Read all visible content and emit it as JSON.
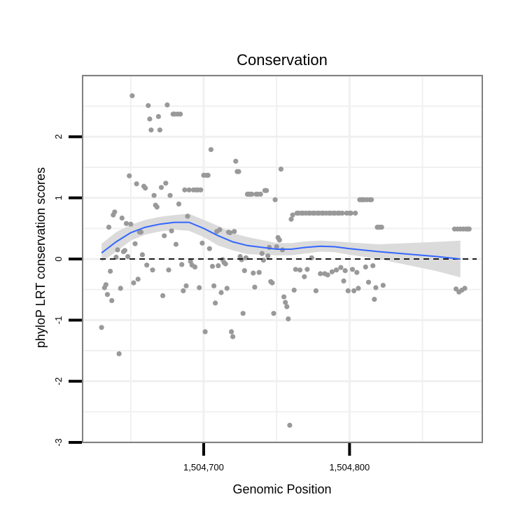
{
  "chart_data": {
    "type": "scatter",
    "title": "Conservation",
    "xlabel": "Genomic Position",
    "ylabel": "phyloP LRT conservation scores",
    "xlim": [
      1504617,
      1504891
    ],
    "ylim": [
      -3,
      3
    ],
    "x_ticks": [
      1504700,
      1504800
    ],
    "x_tick_labels": [
      "1,504,700",
      "1,504,800"
    ],
    "y_ticks": [
      -3,
      -2,
      -1,
      0,
      1,
      2
    ],
    "y_tick_labels": [
      "-3",
      "-2",
      "-1",
      "0",
      "1",
      "2"
    ],
    "grid": true,
    "reference_line": {
      "y": 0,
      "style": "dashed",
      "color": "#000000"
    },
    "colors": {
      "points": "#999999",
      "smooth": "#3366ff",
      "ribbon": "#d9d9d9",
      "panel_border": "#808080"
    },
    "series": [
      {
        "name": "scores",
        "kind": "points",
        "points": [
          [
            1504630,
            -1.12
          ],
          [
            1504632,
            -0.47
          ],
          [
            1504633,
            -0.42
          ],
          [
            1504634,
            -0.58
          ],
          [
            1504635,
            0.52
          ],
          [
            1504636,
            -0.2
          ],
          [
            1504637,
            -0.68
          ],
          [
            1504638,
            0.72
          ],
          [
            1504639,
            0.77
          ],
          [
            1504640,
            0.03
          ],
          [
            1504641,
            0.15
          ],
          [
            1504642,
            -1.55
          ],
          [
            1504643,
            -0.48
          ],
          [
            1504644,
            0.67
          ],
          [
            1504645,
            0.12
          ],
          [
            1504646,
            0.14
          ],
          [
            1504647,
            0.58
          ],
          [
            1504648,
            0.04
          ],
          [
            1504649,
            1.36
          ],
          [
            1504650,
            0.57
          ],
          [
            1504651,
            2.67
          ],
          [
            1504652,
            -0.39
          ],
          [
            1504653,
            0.25
          ],
          [
            1504654,
            1.23
          ],
          [
            1504655,
            -0.33
          ],
          [
            1504656,
            0.44
          ],
          [
            1504657,
            0.44
          ],
          [
            1504658,
            0.07
          ],
          [
            1504659,
            1.19
          ],
          [
            1504660,
            1.16
          ],
          [
            1504661,
            -0.1
          ],
          [
            1504662,
            2.51
          ],
          [
            1504663,
            2.29
          ],
          [
            1504664,
            2.11
          ],
          [
            1504665,
            -0.18
          ],
          [
            1504666,
            1.04
          ],
          [
            1504667,
            0.88
          ],
          [
            1504668,
            0.85
          ],
          [
            1504669,
            2.33
          ],
          [
            1504670,
            2.11
          ],
          [
            1504671,
            1.17
          ],
          [
            1504672,
            -0.6
          ],
          [
            1504673,
            0.38
          ],
          [
            1504674,
            1.24
          ],
          [
            1504675,
            2.52
          ],
          [
            1504676,
            -0.18
          ],
          [
            1504677,
            1.04
          ],
          [
            1504678,
            0.46
          ],
          [
            1504679,
            2.37
          ],
          [
            1504680,
            2.37
          ],
          [
            1504681,
            0.24
          ],
          [
            1504682,
            2.37
          ],
          [
            1504683,
            0.9
          ],
          [
            1504684,
            2.37
          ],
          [
            1504685,
            -0.09
          ],
          [
            1504686,
            -0.52
          ],
          [
            1504687,
            1.13
          ],
          [
            1504688,
            -0.44
          ],
          [
            1504689,
            0.7
          ],
          [
            1504690,
            1.13
          ],
          [
            1504691,
            -0.04
          ],
          [
            1504692,
            -0.1
          ],
          [
            1504693,
            1.13
          ],
          [
            1504694,
            -0.13
          ],
          [
            1504695,
            1.13
          ],
          [
            1504696,
            1.13
          ],
          [
            1504697,
            -0.47
          ],
          [
            1504698,
            1.13
          ],
          [
            1504699,
            0.26
          ],
          [
            1504700,
            1.37
          ],
          [
            1504701,
            -1.19
          ],
          [
            1504702,
            1.37
          ],
          [
            1504703,
            1.37
          ],
          [
            1504704,
            0.17
          ],
          [
            1504705,
            1.79
          ],
          [
            1504706,
            -0.12
          ],
          [
            1504707,
            -0.44
          ],
          [
            1504708,
            -0.72
          ],
          [
            1504709,
            0.45
          ],
          [
            1504710,
            -0.11
          ],
          [
            1504711,
            0.48
          ],
          [
            1504712,
            -0.55
          ],
          [
            1504713,
            -0.01
          ],
          [
            1504714,
            -0.06
          ],
          [
            1504715,
            -0.08
          ],
          [
            1504716,
            -0.48
          ],
          [
            1504717,
            0.44
          ],
          [
            1504718,
            0.43
          ],
          [
            1504719,
            -1.19
          ],
          [
            1504720,
            -1.27
          ],
          [
            1504721,
            0.45
          ],
          [
            1504722,
            1.6
          ],
          [
            1504723,
            1.43
          ],
          [
            1504724,
            1.43
          ],
          [
            1504725,
            0.04
          ],
          [
            1504726,
            -0.01
          ],
          [
            1504727,
            -0.89
          ],
          [
            1504728,
            -0.19
          ],
          [
            1504729,
            0.02
          ],
          [
            1504730,
            1.06
          ],
          [
            1504731,
            1.06
          ],
          [
            1504732,
            1.06
          ],
          [
            1504733,
            1.06
          ],
          [
            1504734,
            -0.23
          ],
          [
            1504735,
            -0.46
          ],
          [
            1504736,
            1.06
          ],
          [
            1504737,
            1.06
          ],
          [
            1504738,
            -0.22
          ],
          [
            1504739,
            1.06
          ],
          [
            1504740,
            0.09
          ],
          [
            1504741,
            -0.02
          ],
          [
            1504742,
            1.12
          ],
          [
            1504743,
            1.12
          ],
          [
            1504744,
            0.05
          ],
          [
            1504745,
            0.19
          ],
          [
            1504746,
            -0.37
          ],
          [
            1504747,
            -0.39
          ],
          [
            1504748,
            -0.89
          ],
          [
            1504749,
            0.97
          ],
          [
            1504750,
            0.2
          ],
          [
            1504751,
            0.35
          ],
          [
            1504752,
            0.31
          ],
          [
            1504753,
            1.47
          ],
          [
            1504754,
            0.15
          ],
          [
            1504755,
            -0.62
          ],
          [
            1504756,
            -0.71
          ],
          [
            1504757,
            -0.78
          ],
          [
            1504758,
            -0.98
          ],
          [
            1504759,
            -2.72
          ],
          [
            1504760,
            0.65
          ],
          [
            1504761,
            0.72
          ],
          [
            1504762,
            -0.51
          ],
          [
            1504763,
            -0.17
          ],
          [
            1504764,
            0.75
          ],
          [
            1504765,
            0.75
          ],
          [
            1504766,
            -0.18
          ],
          [
            1504767,
            0.75
          ],
          [
            1504768,
            0.75
          ],
          [
            1504769,
            -0.29
          ],
          [
            1504770,
            0.75
          ],
          [
            1504771,
            -0.17
          ],
          [
            1504772,
            0.75
          ],
          [
            1504773,
            0.75
          ],
          [
            1504774,
            0.02
          ],
          [
            1504775,
            0.75
          ],
          [
            1504776,
            0.75
          ],
          [
            1504777,
            -0.52
          ],
          [
            1504778,
            0.75
          ],
          [
            1504779,
            0.75
          ],
          [
            1504780,
            -0.24
          ],
          [
            1504781,
            0.75
          ],
          [
            1504782,
            0.75
          ],
          [
            1504783,
            -0.24
          ],
          [
            1504784,
            0.75
          ],
          [
            1504785,
            -0.26
          ],
          [
            1504786,
            0.75
          ],
          [
            1504787,
            0.75
          ],
          [
            1504788,
            -0.21
          ],
          [
            1504789,
            0.75
          ],
          [
            1504790,
            0.75
          ],
          [
            1504791,
            -0.18
          ],
          [
            1504792,
            0.75
          ],
          [
            1504793,
            0.75
          ],
          [
            1504794,
            -0.14
          ],
          [
            1504795,
            0.75
          ],
          [
            1504796,
            -0.36
          ],
          [
            1504797,
            -0.19
          ],
          [
            1504798,
            0.75
          ],
          [
            1504799,
            -0.52
          ],
          [
            1504800,
            0.75
          ],
          [
            1504801,
            0.75
          ],
          [
            1504802,
            -0.17
          ],
          [
            1504803,
            -0.52
          ],
          [
            1504804,
            0.75
          ],
          [
            1504805,
            -0.22
          ],
          [
            1504806,
            -0.48
          ],
          [
            1504807,
            0.97
          ],
          [
            1504808,
            0.97
          ],
          [
            1504809,
            0.97
          ],
          [
            1504810,
            0.97
          ],
          [
            1504811,
            -0.13
          ],
          [
            1504812,
            0.97
          ],
          [
            1504813,
            -0.38
          ],
          [
            1504814,
            0.97
          ],
          [
            1504815,
            0.97
          ],
          [
            1504816,
            -0.11
          ],
          [
            1504817,
            -0.66
          ],
          [
            1504818,
            -0.47
          ],
          [
            1504819,
            0.52
          ],
          [
            1504820,
            0.52
          ],
          [
            1504821,
            0.52
          ],
          [
            1504822,
            0.52
          ],
          [
            1504823,
            -0.43
          ],
          [
            1504872,
            0.49
          ],
          [
            1504873,
            -0.49
          ],
          [
            1504874,
            0.49
          ],
          [
            1504875,
            -0.54
          ],
          [
            1504876,
            0.49
          ],
          [
            1504877,
            -0.51
          ],
          [
            1504878,
            0.49
          ],
          [
            1504879,
            -0.48
          ],
          [
            1504880,
            0.49
          ],
          [
            1504881,
            0.49
          ],
          [
            1504882,
            0.49
          ]
        ]
      },
      {
        "name": "loess fit",
        "kind": "smooth",
        "x": [
          1504630,
          1504640,
          1504650,
          1504660,
          1504670,
          1504680,
          1504690,
          1504700,
          1504710,
          1504720,
          1504730,
          1504740,
          1504750,
          1504760,
          1504770,
          1504780,
          1504790,
          1504800,
          1504820,
          1504840,
          1504860,
          1504876
        ],
        "y": [
          0.1,
          0.28,
          0.43,
          0.52,
          0.57,
          0.6,
          0.6,
          0.5,
          0.38,
          0.28,
          0.22,
          0.19,
          0.16,
          0.16,
          0.19,
          0.21,
          0.2,
          0.17,
          0.12,
          0.08,
          0.04,
          0.0
        ],
        "lower": [
          -0.05,
          0.12,
          0.3,
          0.4,
          0.45,
          0.48,
          0.46,
          0.36,
          0.22,
          0.14,
          0.08,
          0.07,
          0.06,
          0.06,
          0.09,
          0.12,
          0.11,
          0.07,
          0.0,
          -0.1,
          -0.2,
          -0.3
        ],
        "upper": [
          0.25,
          0.44,
          0.56,
          0.64,
          0.69,
          0.72,
          0.74,
          0.64,
          0.54,
          0.42,
          0.36,
          0.31,
          0.26,
          0.26,
          0.29,
          0.3,
          0.29,
          0.27,
          0.24,
          0.26,
          0.28,
          0.3
        ]
      }
    ]
  }
}
